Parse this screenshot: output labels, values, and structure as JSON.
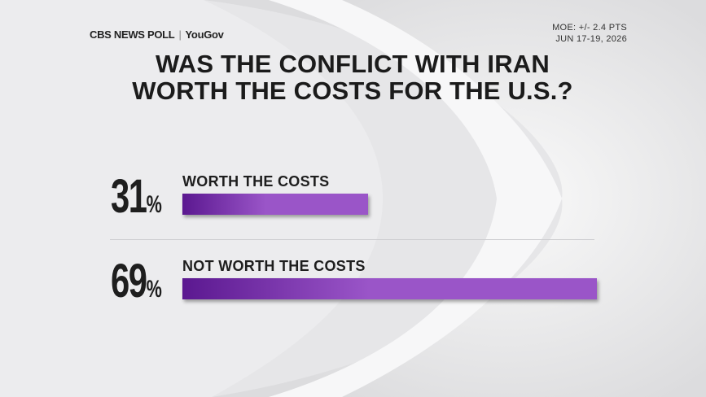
{
  "chart_data": {
    "type": "bar",
    "orientation": "horizontal",
    "brand": "CBS NEWS POLL",
    "partner": "YouGov",
    "notes": [
      "MOE: +/- 2.4 PTS",
      "JUN 17-19, 2026"
    ],
    "title": "WAS THE CONFLICT WITH IRAN WORTH THE COSTS FOR THE U.S.?",
    "categories": [
      "WORTH THE COSTS",
      "NOT WORTH THE COSTS"
    ],
    "values": [
      31,
      69
    ],
    "unit": "%",
    "colors": [
      "#5b1890",
      "#9a55c8"
    ]
  }
}
